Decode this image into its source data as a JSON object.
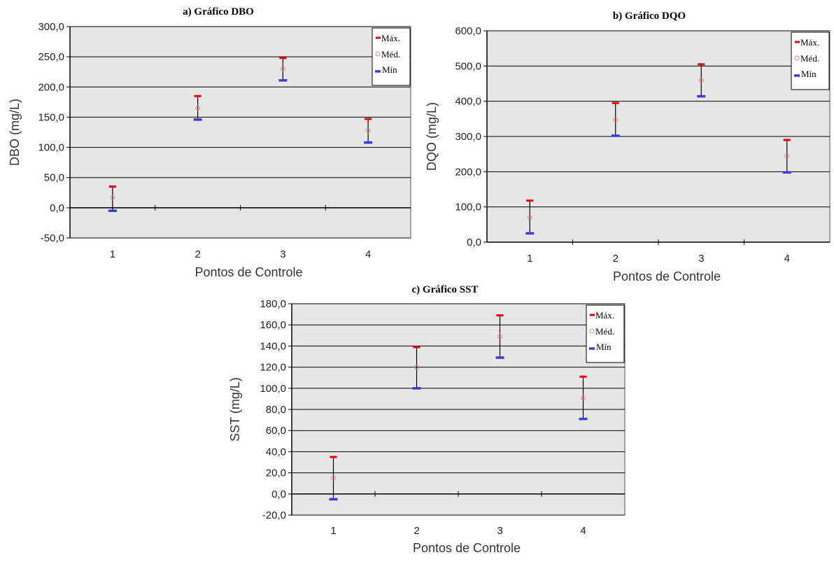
{
  "legend": {
    "max": "Máx.",
    "med": "Méd.",
    "min": "Mín"
  },
  "colors": {
    "plot_bg": "#e6e6e6",
    "max": "#e00000",
    "med": "#f08080",
    "min": "#3a3ad0",
    "whisker": "#000000"
  },
  "chart_data": [
    {
      "id": "a",
      "type": "scatter",
      "title": "a) Gráfico DBO",
      "xlabel": "Pontos de Controle",
      "ylabel": "DBO (mg/L)",
      "categories": [
        "1",
        "2",
        "3",
        "4"
      ],
      "yticks": [
        "-50,0",
        "0,0",
        "50,0",
        "100,0",
        "150,0",
        "200,0",
        "250,0",
        "300,0"
      ],
      "ylim": [
        -50,
        300
      ],
      "series": [
        {
          "name": "Máx.",
          "values": [
            35,
            185,
            248,
            147
          ]
        },
        {
          "name": "Méd.",
          "values": [
            17,
            165,
            230,
            128
          ]
        },
        {
          "name": "Mín",
          "values": [
            -5,
            146,
            211,
            108
          ]
        }
      ],
      "grid": true,
      "legend_position": "top-right"
    },
    {
      "id": "b",
      "type": "scatter",
      "title": "b) Gráfico DQO",
      "xlabel": "Pontos de Controle",
      "ylabel": "DQO (mg/L)",
      "categories": [
        "1",
        "2",
        "3",
        "4"
      ],
      "yticks": [
        "0,0",
        "100,0",
        "200,0",
        "300,0",
        "400,0",
        "500,0",
        "600,0"
      ],
      "ylim": [
        0,
        600
      ],
      "series": [
        {
          "name": "Máx.",
          "values": [
            118,
            395,
            505,
            290
          ]
        },
        {
          "name": "Méd.",
          "values": [
            70,
            347,
            460,
            245
          ]
        },
        {
          "name": "Mín",
          "values": [
            25,
            302,
            414,
            198
          ]
        }
      ],
      "grid": true,
      "legend_position": "top-right"
    },
    {
      "id": "c",
      "type": "scatter",
      "title": "c) Gráfico SST",
      "xlabel": "Pontos de Controle",
      "ylabel": "SST (mg/L)",
      "categories": [
        "1",
        "2",
        "3",
        "4"
      ],
      "yticks": [
        "-20,0",
        "0,0",
        "20,0",
        "40,0",
        "60,0",
        "80,0",
        "100,0",
        "120,0",
        "140,0",
        "160,0",
        "180,0"
      ],
      "ylim": [
        -20,
        180
      ],
      "series": [
        {
          "name": "Máx.",
          "values": [
            35,
            139,
            169,
            111
          ]
        },
        {
          "name": "Méd.",
          "values": [
            15,
            120,
            149,
            91
          ]
        },
        {
          "name": "Mín",
          "values": [
            -5,
            100,
            129,
            71
          ]
        }
      ],
      "grid": true,
      "legend_position": "top-right"
    }
  ]
}
